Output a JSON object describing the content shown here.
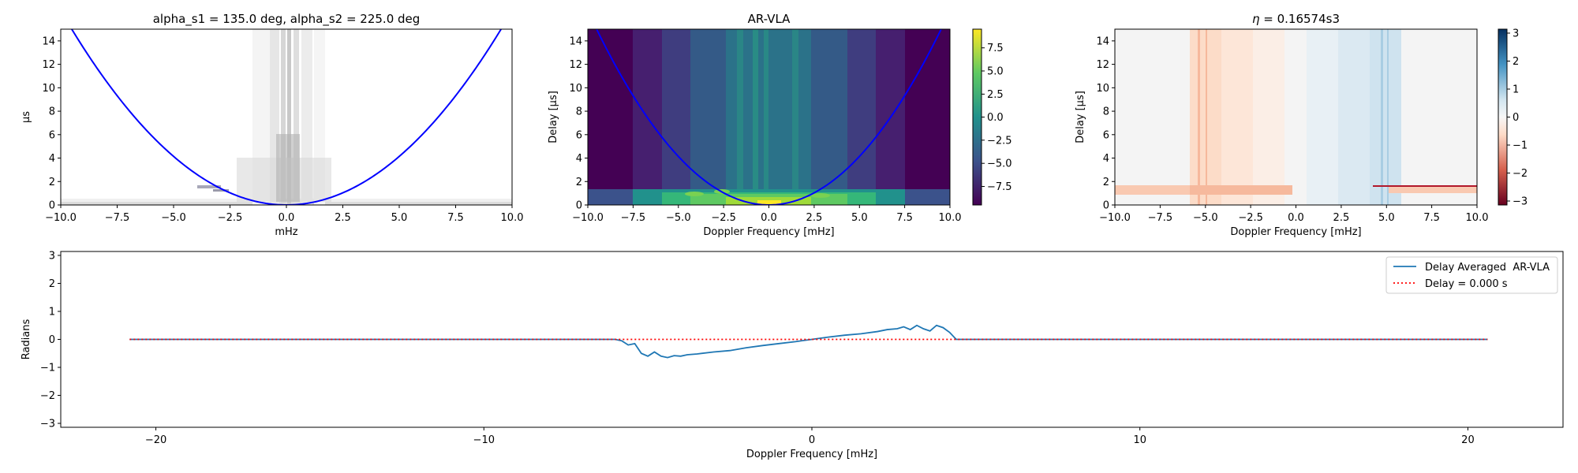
{
  "chart_data": [
    {
      "type": "heatmap",
      "title": "alpha_s1 = 135.0 deg, alpha_s2 = 225.0 deg",
      "xlabel": "mHz",
      "ylabel": "µs",
      "xlim": [
        -10,
        10
      ],
      "ylim": [
        0,
        15
      ],
      "xticks": [
        "−10.0",
        "−7.5",
        "−5.0",
        "−2.5",
        "0.0",
        "2.5",
        "5.0",
        "7.5",
        "10.0"
      ],
      "yticks": [
        "0",
        "2",
        "4",
        "6",
        "8",
        "10",
        "12",
        "14"
      ],
      "colormap": "greys",
      "overlay_curve": {
        "form": "parabola",
        "coef_us_per_mHz2": 0.16574,
        "vertex_x": 0.0,
        "color": "#0000ff"
      }
    },
    {
      "type": "heatmap",
      "title": "AR-VLA",
      "xlabel": "Doppler Frequency [mHz]",
      "ylabel": "Delay [μs]",
      "xlim": [
        -10,
        10
      ],
      "ylim": [
        0,
        15
      ],
      "xticks": [
        "−10.0",
        "−7.5",
        "−5.0",
        "−2.5",
        "0.0",
        "2.5",
        "5.0",
        "7.5",
        "10.0"
      ],
      "yticks": [
        "0",
        "2",
        "4",
        "6",
        "8",
        "10",
        "12",
        "14"
      ],
      "colormap": "viridis",
      "colorbar": {
        "range": [
          -9.5,
          9.5
        ],
        "ticks": [
          "7.5",
          "5.0",
          "2.5",
          "0.0",
          "−2.5",
          "−5.0",
          "−7.5"
        ],
        "tick_values": [
          7.5,
          5.0,
          2.5,
          0.0,
          -2.5,
          -5.0,
          -7.5
        ]
      },
      "overlay_curve": {
        "form": "parabola",
        "coef_us_per_mHz2": 0.16574,
        "vertex_x": 0.0,
        "color": "#0000ff"
      }
    },
    {
      "type": "heatmap",
      "title": "η = 0.16574s3",
      "title_pre": "η",
      "title_post": " = 0.16574s3",
      "xlabel": "Doppler Frequency [mHz]",
      "ylabel": "Delay [μs]",
      "xlim": [
        -10,
        10
      ],
      "ylim": [
        0,
        15
      ],
      "xticks": [
        "−10.0",
        "−7.5",
        "−5.0",
        "−2.5",
        "0.0",
        "2.5",
        "5.0",
        "7.5",
        "10.0"
      ],
      "yticks": [
        "0",
        "2",
        "4",
        "6",
        "8",
        "10",
        "12",
        "14"
      ],
      "colormap": "RdBu",
      "colorbar": {
        "range": [
          -3.14,
          3.14
        ],
        "ticks": [
          "3",
          "2",
          "1",
          "0",
          "−1",
          "−2",
          "−3"
        ],
        "tick_values": [
          3,
          2,
          1,
          0,
          -1,
          -2,
          -3
        ]
      }
    },
    {
      "type": "line",
      "xlabel": "Doppler Frequency [mHz]",
      "ylabel": "Radians",
      "xlim": [
        -22.9,
        22.9
      ],
      "ylim": [
        -3.14,
        3.14
      ],
      "xticks": [
        "−20",
        "−10",
        "0",
        "10",
        "20"
      ],
      "xtick_values": [
        -20,
        -10,
        0,
        10,
        20
      ],
      "yticks": [
        "3",
        "2",
        "1",
        "0",
        "−1",
        "−2",
        "−3"
      ],
      "ytick_values": [
        3,
        2,
        1,
        0,
        -1,
        -2,
        -3
      ],
      "legend_position": "top-right",
      "series": [
        {
          "name": "Delay Averaged  AR-VLA",
          "color": "#1f77b4",
          "style": "solid",
          "x": [
            -20.8,
            -6.0,
            -5.8,
            -5.6,
            -5.4,
            -5.2,
            -5.0,
            -4.8,
            -4.6,
            -4.4,
            -4.2,
            -4.0,
            -3.8,
            -3.5,
            -3.0,
            -2.5,
            -2.0,
            -1.5,
            -1.0,
            -0.5,
            0.0,
            0.5,
            1.0,
            1.5,
            2.0,
            2.3,
            2.6,
            2.8,
            3.0,
            3.2,
            3.4,
            3.6,
            3.8,
            4.0,
            4.2,
            4.4,
            5.0,
            20.6
          ],
          "y": [
            0.0,
            0.0,
            -0.05,
            -0.2,
            -0.15,
            -0.5,
            -0.6,
            -0.45,
            -0.6,
            -0.65,
            -0.58,
            -0.6,
            -0.55,
            -0.52,
            -0.45,
            -0.4,
            -0.3,
            -0.22,
            -0.15,
            -0.08,
            0.0,
            0.08,
            0.15,
            0.2,
            0.28,
            0.35,
            0.38,
            0.45,
            0.35,
            0.5,
            0.38,
            0.3,
            0.5,
            0.42,
            0.25,
            0.0,
            0.0,
            0.0
          ]
        },
        {
          "name": "Delay = 0.000 s",
          "color": "#ff0000",
          "style": "dotted",
          "x": [
            -20.8,
            20.6
          ],
          "y": [
            0.0,
            0.0
          ]
        }
      ]
    }
  ]
}
